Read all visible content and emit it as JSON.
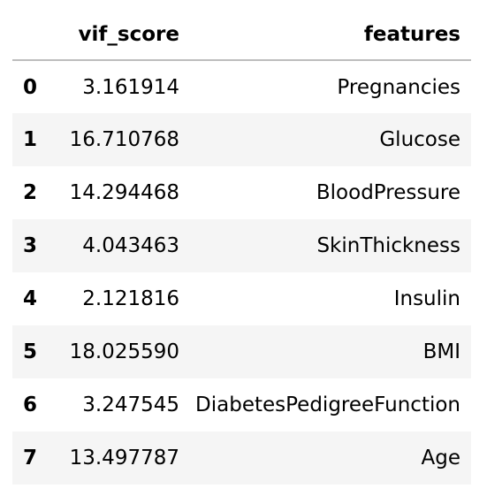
{
  "table": {
    "columns": [
      "vif_score",
      "features"
    ],
    "rows": [
      {
        "index": "0",
        "vif_score": "3.161914",
        "features": "Pregnancies"
      },
      {
        "index": "1",
        "vif_score": "16.710768",
        "features": "Glucose"
      },
      {
        "index": "2",
        "vif_score": "14.294468",
        "features": "BloodPressure"
      },
      {
        "index": "3",
        "vif_score": "4.043463",
        "features": "SkinThickness"
      },
      {
        "index": "4",
        "vif_score": "2.121816",
        "features": "Insulin"
      },
      {
        "index": "5",
        "vif_score": "18.025590",
        "features": "BMI"
      },
      {
        "index": "6",
        "vif_score": "3.247545",
        "features": "DiabetesPedigreeFunction"
      },
      {
        "index": "7",
        "vif_score": "13.497787",
        "features": "Age"
      }
    ]
  },
  "colors": {
    "stripe": "#f5f5f5",
    "header_rule": "#bdbdbd",
    "text": "#000000"
  }
}
